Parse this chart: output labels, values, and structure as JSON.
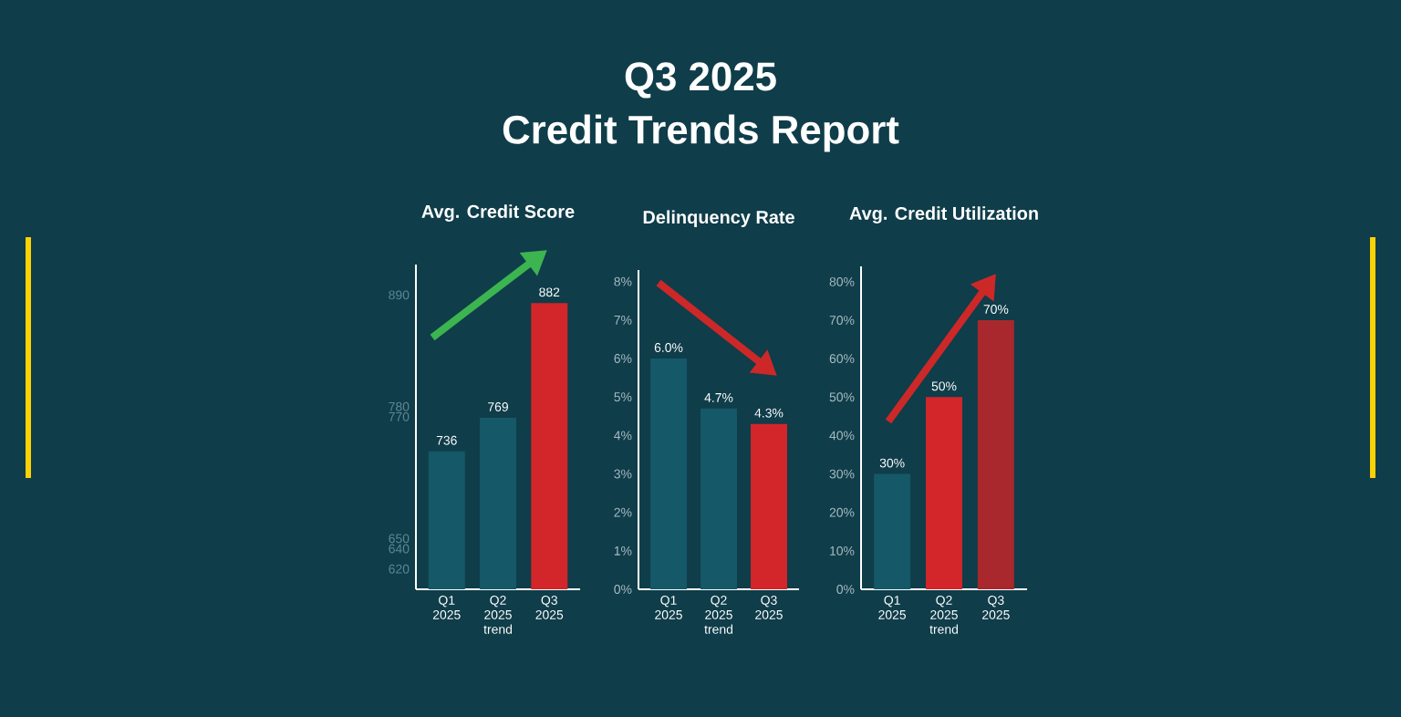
{
  "chart_data": [
    {
      "type": "other",
      "title": "Q3 2025",
      "subtitle": "Credit Trends Report"
    },
    {
      "type": "bar",
      "title": "Avg. Credit Score",
      "categories": [
        "Q1 2025",
        "Q2 2025 trend",
        "Q3 2025"
      ],
      "values": [
        736,
        769,
        882
      ],
      "colors": [
        "#155868",
        "#155868",
        "#d2262a"
      ],
      "data_labels": true,
      "ylim": [
        600,
        920
      ],
      "yticks": [
        620,
        640,
        650,
        770,
        780,
        890
      ]
    },
    {
      "type": "bar",
      "title": "Delinquency Rate",
      "categories": [
        "Q1 2025",
        "Q2 2025 trend",
        "Q3 2025"
      ],
      "values": [
        6.0,
        4.7,
        4.3
      ],
      "colors": [
        "#155868",
        "#155868",
        "#d2262a"
      ],
      "value_labels": [
        "6.0%",
        "4.7%",
        "4.3%"
      ],
      "ylim": [
        0,
        8.3
      ],
      "yticks": [
        {
          "value": 0,
          "label": "0%"
        },
        {
          "value": 1,
          "label": "1%"
        },
        {
          "value": 2,
          "label": "2%"
        },
        {
          "value": 3,
          "label": "3%"
        },
        {
          "value": 4,
          "label": "4%"
        },
        {
          "value": 5,
          "label": "5%"
        },
        {
          "value": 6,
          "label": "6%"
        },
        {
          "value": 7,
          "label": "7%"
        },
        {
          "value": 8,
          "label": "8%"
        }
      ]
    },
    {
      "type": "bar",
      "title": "Avg. Credit Utilization",
      "categories": [
        "Q1 2025",
        "Q2 2025 trend",
        "Q3 2025"
      ],
      "values": [
        30,
        50,
        70
      ],
      "colors": [
        "#155868",
        "#d2262a",
        "#a8282e"
      ],
      "value_labels": [
        "30%",
        "50%",
        "70%"
      ],
      "ylim": [
        0,
        84
      ],
      "yticks": [
        {
          "value": 0,
          "label": "0%"
        },
        {
          "value": 10,
          "label": "10%"
        },
        {
          "value": 20,
          "label": "20%"
        },
        {
          "value": 30,
          "label": "30%"
        },
        {
          "value": 40,
          "label": "40%"
        },
        {
          "value": 50,
          "label": "50%"
        },
        {
          "value": 60,
          "label": "60%"
        },
        {
          "value": 70,
          "label": "70%"
        },
        {
          "value": 80,
          "label": "80%"
        }
      ]
    }
  ]
}
